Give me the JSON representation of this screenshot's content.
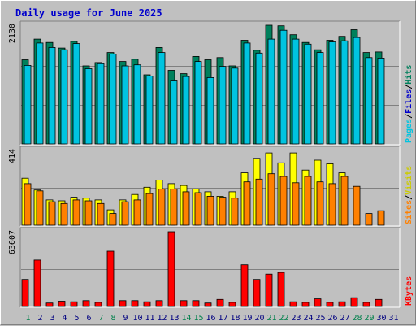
{
  "chart_data": {
    "type": "bar",
    "title": "Daily usage for June 2025",
    "colors": {
      "background": "#c0c0c0",
      "title": "#0000cc",
      "weekday_label": "#000080",
      "weekend_label": "#00804b",
      "hits": "#00805c",
      "files": "#00c4e0",
      "pages": "#0030ff",
      "visits": "#ffff00",
      "sites": "#ff8000",
      "kbytes": "#ff0000",
      "gridline": "#808080"
    },
    "days": [
      "1",
      "2",
      "3",
      "4",
      "5",
      "6",
      "7",
      "8",
      "9",
      "10",
      "11",
      "12",
      "13",
      "14",
      "15",
      "16",
      "17",
      "18",
      "19",
      "20",
      "21",
      "22",
      "23",
      "24",
      "25",
      "26",
      "27",
      "28",
      "29",
      "30",
      "31"
    ],
    "weekend_days": [
      "1",
      "7",
      "8",
      "14",
      "15",
      "21",
      "22",
      "28",
      "29"
    ],
    "panels": [
      {
        "id": "hits-files-pages",
        "ymax_label": "2130",
        "ymax": 2130,
        "side_labels": [
          {
            "text": "Hits",
            "color": "#00805c"
          },
          {
            "text": "Files",
            "color": "#0000cc"
          },
          {
            "text": "Pages",
            "color": "#00c4e0"
          }
        ],
        "series": [
          {
            "name": "Hits",
            "color": "#00805c",
            "values": [
              1510,
              1880,
              1820,
              1720,
              1840,
              1400,
              1460,
              1640,
              1480,
              1520,
              1240,
              1730,
              1320,
              1260,
              1570,
              1510,
              1550,
              1400,
              1860,
              1680,
              2130,
              2120,
              1960,
              1820,
              1690,
              1860,
              1930,
              2050,
              1640,
              1650,
              0
            ]
          },
          {
            "name": "Files",
            "color": "#00c4e0",
            "values": [
              1410,
              1810,
              1730,
              1690,
              1800,
              1350,
              1440,
              1610,
              1400,
              1420,
              1220,
              1640,
              1130,
              1210,
              1480,
              1190,
              1390,
              1360,
              1810,
              1630,
              1880,
              2040,
              1880,
              1790,
              1640,
              1830,
              1850,
              1910,
              1550,
              1540,
              0
            ]
          },
          {
            "name": "Pages",
            "color": "#0030ff",
            "values": [
              0,
              0,
              0,
              0,
              0,
              0,
              0,
              0,
              0,
              0,
              0,
              0,
              0,
              0,
              0,
              0,
              0,
              0,
              0,
              0,
              0,
              0,
              0,
              0,
              0,
              0,
              0,
              0,
              0,
              0,
              0
            ]
          }
        ]
      },
      {
        "id": "visits-sites",
        "ymax_label": "414",
        "ymax": 414,
        "side_labels": [
          {
            "text": "Visits",
            "color": "#cccc00"
          },
          {
            "text": "Sites",
            "color": "#ff8000"
          }
        ],
        "series": [
          {
            "name": "Visits",
            "color": "#ffff00",
            "values": [
              260,
              195,
              140,
              135,
              155,
              150,
              140,
              85,
              140,
              170,
              210,
              250,
              230,
              220,
              200,
              185,
              160,
              185,
              290,
              370,
              400,
              345,
              400,
              305,
              360,
              340,
              290,
              0,
              0,
              0,
              0
            ]
          },
          {
            "name": "Sites",
            "color": "#ff8000",
            "values": [
              230,
              190,
              130,
              120,
              140,
              135,
              120,
              65,
              130,
              140,
              175,
              200,
              200,
              185,
              180,
              160,
              155,
              150,
              240,
              255,
              285,
              270,
              235,
              270,
              240,
              230,
              270,
              215,
              65,
              80,
              0
            ]
          }
        ]
      },
      {
        "id": "kbytes",
        "ymax_label": "63607",
        "ymax": 63607,
        "side_labels": [
          {
            "text": "KBytes",
            "color": "#ff0000"
          }
        ],
        "series": [
          {
            "name": "KBytes",
            "color": "#ff0000",
            "values": [
              23000,
              39500,
              3000,
              4500,
              4000,
              5000,
              3500,
              47000,
              5000,
              5000,
              4000,
              5000,
              63607,
              5000,
              5000,
              3000,
              6000,
              3500,
              35500,
              23000,
              27500,
              29000,
              4000,
              3500,
              6500,
              3500,
              4000,
              7500,
              3500,
              6000,
              0
            ]
          }
        ]
      }
    ]
  }
}
